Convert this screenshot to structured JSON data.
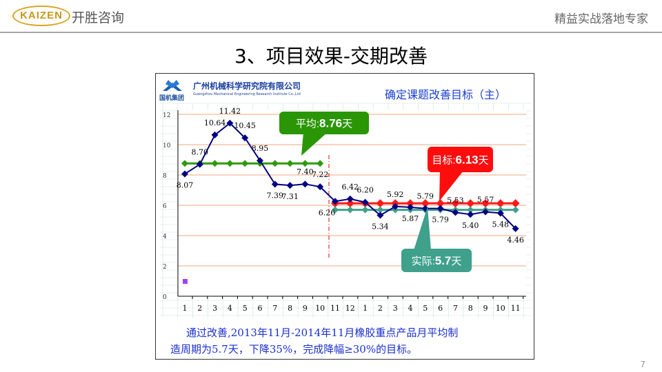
{
  "header": {
    "logo_text": "KAIZEN",
    "brand": "开胜咨询",
    "slogan": "精益实战落地专家"
  },
  "slide_title": "3、项目效果-交期改善",
  "panel": {
    "org_logo": "国机集团",
    "company": "广州机械科学研究院有限公司",
    "company_en": "Guangzhou Mechanical Engineering Research Institute Co.,Ltd",
    "chart_heading": "确定课题改善目标（主）"
  },
  "callouts": {
    "avg_label": "平均:",
    "avg_value": "8.76",
    "avg_unit": "天",
    "target_label": "目标:",
    "target_value": "6.13",
    "target_unit": "天",
    "actual_label": "实际:",
    "actual_value": "5.7",
    "actual_unit": "天"
  },
  "summary": {
    "line1": "通过改善,2013年11月-2014年11月橡胶重点产品月平均制",
    "line2": "造周期为5.7天，下降35%，完成降幅≥30%的目标。"
  },
  "page_number": "7",
  "chart_data": {
    "type": "line",
    "categories": [
      "1",
      "2",
      "3",
      "4",
      "5",
      "6",
      "7",
      "8",
      "9",
      "10",
      "11",
      "12",
      "1",
      "2",
      "3",
      "4",
      "5",
      "6",
      "7",
      "8",
      "9",
      "10",
      "11"
    ],
    "series": [
      {
        "name": "monthly",
        "color": "#000080",
        "values": [
          8.07,
          8.7,
          10.64,
          11.42,
          10.45,
          8.95,
          7.39,
          7.31,
          7.4,
          7.22,
          6.26,
          6.42,
          6.2,
          5.34,
          5.92,
          5.87,
          5.79,
          5.79,
          5.53,
          5.4,
          5.57,
          5.48,
          4.46
        ],
        "labels": [
          "8.07",
          "8.70",
          "10.64",
          "11.42",
          "10.45",
          "8.95",
          "7.39",
          "7.31",
          "7.40",
          "7.22",
          "6.26",
          "6.42",
          "6.20",
          "5.34",
          "5.92",
          "5.87",
          "5.79",
          "5.79",
          "5.53",
          "5.40",
          "5.57",
          "5.48",
          "4.46"
        ]
      },
      {
        "name": "average",
        "color": "#2e9a0c",
        "value": 8.76,
        "range": [
          1,
          10
        ]
      },
      {
        "name": "target",
        "color": "#ff1a1a",
        "value": 6.13,
        "range": [
          11,
          23
        ]
      },
      {
        "name": "actual",
        "color": "#3fa08c",
        "value": 5.7,
        "range": [
          11,
          23
        ]
      }
    ],
    "yticks": [
      "0",
      "2",
      "4",
      "6",
      "8",
      "10",
      "12"
    ],
    "ylim": [
      0,
      12
    ],
    "colors": {
      "grid": "#f7c4a8",
      "sheet": "#cfe0e0"
    }
  }
}
